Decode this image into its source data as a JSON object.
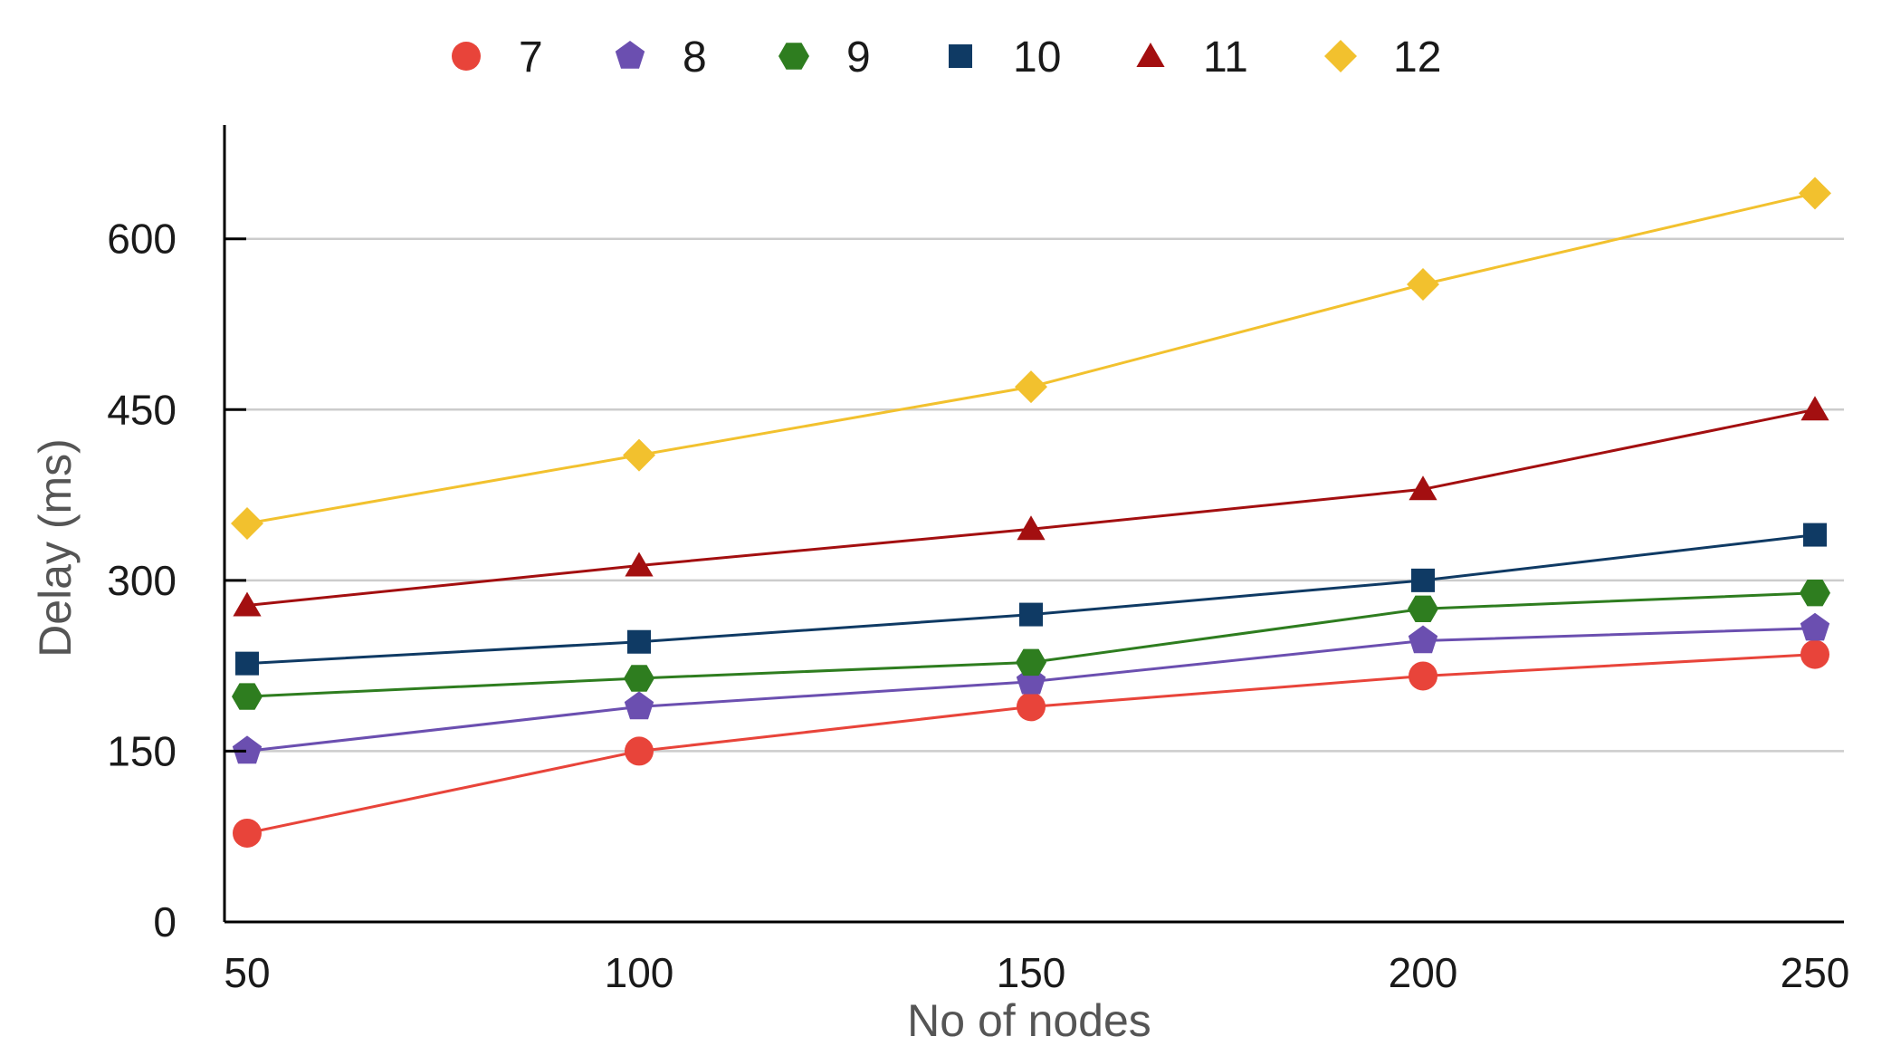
{
  "chart_data": {
    "type": "line",
    "title": "",
    "xlabel": "No of nodes",
    "ylabel": "Delay (ms)",
    "x": [
      50,
      100,
      150,
      200,
      250
    ],
    "xticks": [
      "50",
      "100",
      "150",
      "200",
      "250"
    ],
    "yticks": [
      "0",
      "150",
      "300",
      "450",
      "600"
    ],
    "ylim": [
      0,
      700
    ],
    "grid": true,
    "legend_position": "top",
    "series": [
      {
        "name": "7",
        "marker": "circle",
        "color": "#e8443a",
        "values": [
          78,
          150,
          189,
          216,
          235
        ]
      },
      {
        "name": "8",
        "marker": "pentagon",
        "color": "#6b4fb0",
        "values": [
          150,
          189,
          211,
          247,
          258
        ]
      },
      {
        "name": "9",
        "marker": "hexagon",
        "color": "#2e7d1f",
        "values": [
          198,
          214,
          228,
          275,
          289
        ]
      },
      {
        "name": "10",
        "marker": "square",
        "color": "#0f3a64",
        "values": [
          227,
          246,
          270,
          300,
          340
        ]
      },
      {
        "name": "11",
        "marker": "triangle",
        "color": "#a30f10",
        "values": [
          278,
          313,
          345,
          380,
          450
        ]
      },
      {
        "name": "12",
        "marker": "diamond",
        "color": "#f2c12e",
        "values": [
          350,
          410,
          470,
          560,
          640
        ]
      }
    ]
  }
}
